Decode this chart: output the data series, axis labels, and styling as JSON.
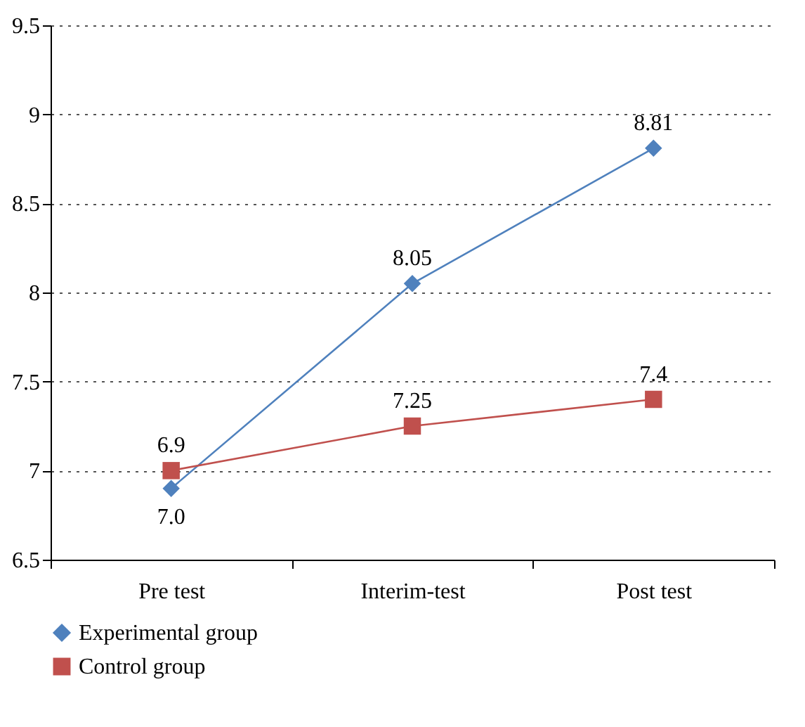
{
  "chart_data": {
    "type": "line",
    "categories": [
      "Pre test",
      "Interim-test",
      "Post test"
    ],
    "series": [
      {
        "name": "Experimental group",
        "color": "#4f81bd",
        "marker": "diamond",
        "values": [
          6.9,
          8.05,
          8.81
        ]
      },
      {
        "name": "Control group",
        "color": "#c0504d",
        "marker": "square",
        "values": [
          7.0,
          7.25,
          7.4
        ]
      }
    ],
    "ylim": [
      6.5,
      9.5
    ],
    "yticks": [
      6.5,
      7,
      7.5,
      8,
      8.5,
      9,
      9.5
    ],
    "grid": "y",
    "legend": "bottom",
    "annotations": [
      {
        "text": "6.9",
        "x": "Pre test",
        "y": 7.0
      },
      {
        "text": "7.0",
        "x": "Pre test",
        "y": 6.9
      },
      {
        "text": "8.05",
        "x": "Interim-test",
        "y": 8.05
      },
      {
        "text": "7.25",
        "x": "Interim-test",
        "y": 7.25
      },
      {
        "text": "8.81",
        "x": "Post test",
        "y": 8.81
      },
      {
        "text": "7.4",
        "x": "Post test",
        "y": 7.4
      }
    ]
  }
}
